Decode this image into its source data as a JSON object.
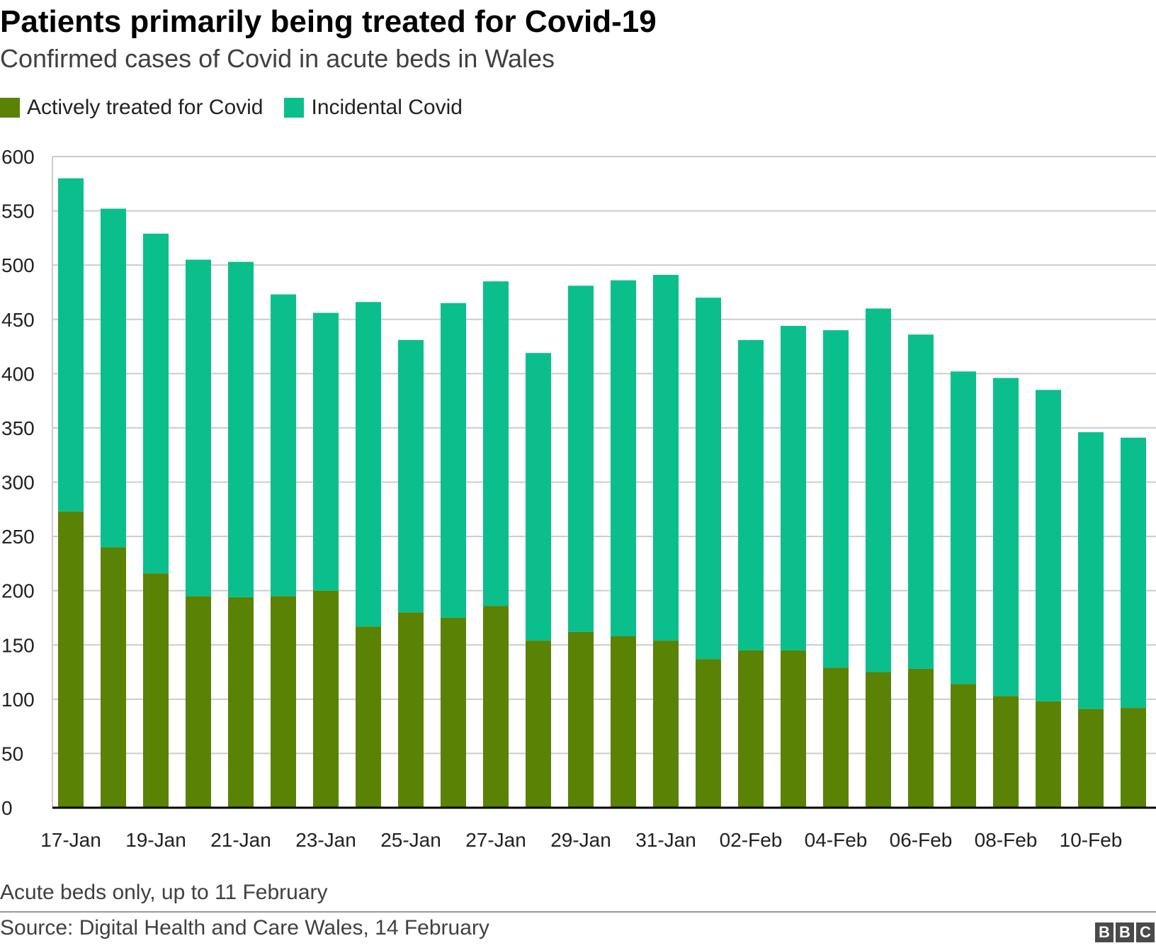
{
  "title": "Patients primarily being treated for Covid-19",
  "subtitle": "Confirmed cases of Covid in acute beds in Wales",
  "legend": {
    "active": "Actively treated for Covid",
    "incidental": "Incidental Covid"
  },
  "colors": {
    "active": "#5a8205",
    "incidental": "#0abf8b",
    "grid": "#cccccc",
    "axis": "#000000"
  },
  "chart_data": {
    "type": "bar",
    "stacked": true,
    "title": "Patients primarily being treated for Covid-19",
    "subtitle": "Confirmed cases of Covid in acute beds in Wales",
    "xlabel": "",
    "ylabel": "",
    "ylim": [
      0,
      600
    ],
    "yticks": [
      0,
      50,
      100,
      150,
      200,
      250,
      300,
      350,
      400,
      450,
      500,
      550,
      600
    ],
    "legend_position": "top-left",
    "categories": [
      "17-Jan",
      "18-Jan",
      "19-Jan",
      "20-Jan",
      "21-Jan",
      "22-Jan",
      "23-Jan",
      "24-Jan",
      "25-Jan",
      "26-Jan",
      "27-Jan",
      "28-Jan",
      "29-Jan",
      "30-Jan",
      "31-Jan",
      "01-Feb",
      "02-Feb",
      "03-Feb",
      "04-Feb",
      "05-Feb",
      "06-Feb",
      "07-Feb",
      "08-Feb",
      "09-Feb",
      "10-Feb",
      "11-Feb"
    ],
    "xtick_labels": [
      "17-Jan",
      "19-Jan",
      "21-Jan",
      "23-Jan",
      "25-Jan",
      "27-Jan",
      "29-Jan",
      "31-Jan",
      "02-Feb",
      "04-Feb",
      "06-Feb",
      "08-Feb",
      "10-Feb"
    ],
    "totals": [
      580,
      552,
      529,
      505,
      503,
      473,
      456,
      466,
      431,
      465,
      485,
      419,
      481,
      486,
      491,
      470,
      431,
      444,
      440,
      460,
      436,
      402,
      396,
      385,
      346,
      341
    ],
    "series": [
      {
        "name": "Actively treated for Covid",
        "values": [
          273,
          240,
          216,
          195,
          194,
          195,
          200,
          167,
          180,
          175,
          186,
          154,
          162,
          158,
          154,
          137,
          145,
          145,
          129,
          125,
          128,
          114,
          103,
          98,
          91,
          92
        ]
      },
      {
        "name": "Incidental Covid",
        "values": [
          307,
          312,
          313,
          310,
          309,
          278,
          256,
          299,
          251,
          290,
          299,
          265,
          319,
          328,
          337,
          333,
          286,
          299,
          311,
          335,
          308,
          288,
          293,
          287,
          255,
          249
        ]
      }
    ]
  },
  "footer": {
    "note": "Acute beds only, up to 11 February",
    "source": "Source: Digital Health and Care Wales, 14 February",
    "logo_letters": [
      "B",
      "B",
      "C"
    ]
  }
}
